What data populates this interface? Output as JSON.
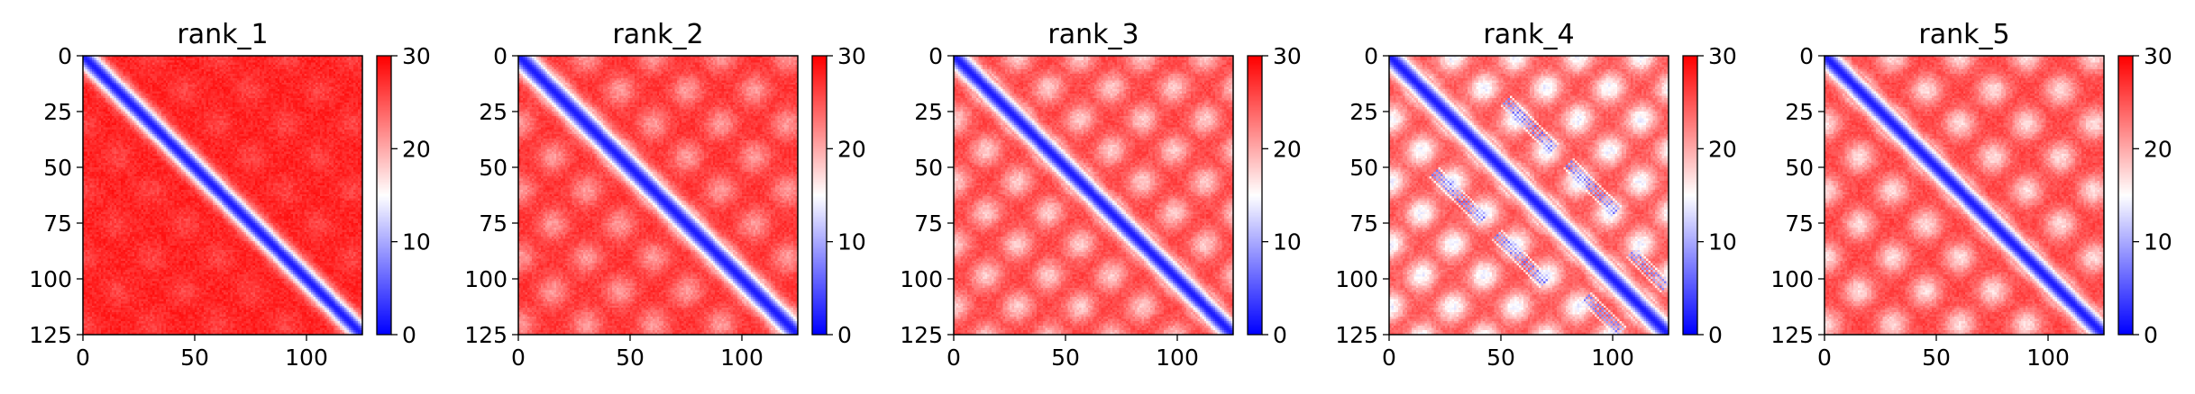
{
  "chart_data": [
    {
      "type": "heatmap",
      "title": "rank_1",
      "x_ticks": [
        0,
        50,
        100
      ],
      "y_ticks": [
        0,
        25,
        50,
        75,
        100,
        125
      ],
      "x_range": [
        0,
        125
      ],
      "y_range": [
        0,
        125
      ],
      "matrix_size": 125,
      "value_range": [
        0,
        30
      ],
      "colorbar_ticks": [
        0,
        10,
        20,
        30
      ],
      "colormap": [
        "#0000ff",
        "#ffffff",
        "#ff0000"
      ],
      "pattern": {
        "diagonal_width": 4.5,
        "off_diagonal_level": 28,
        "stripe_amplitude": 2,
        "stripe_period": 30,
        "stripe_width": 6,
        "islands": []
      }
    },
    {
      "type": "heatmap",
      "title": "rank_2",
      "x_ticks": [
        0,
        50,
        100
      ],
      "y_ticks": [
        0,
        25,
        50,
        75,
        100,
        125
      ],
      "x_range": [
        0,
        125
      ],
      "y_range": [
        0,
        125
      ],
      "matrix_size": 125,
      "value_range": [
        0,
        30
      ],
      "colorbar_ticks": [
        0,
        10,
        20,
        30
      ],
      "colormap": [
        "#0000ff",
        "#ffffff",
        "#ff0000"
      ],
      "pattern": {
        "diagonal_width": 5,
        "off_diagonal_level": 27,
        "stripe_amplitude": 6,
        "stripe_period": 30,
        "stripe_width": 7,
        "islands": []
      }
    },
    {
      "type": "heatmap",
      "title": "rank_3",
      "x_ticks": [
        0,
        50,
        100
      ],
      "y_ticks": [
        0,
        25,
        50,
        75,
        100,
        125
      ],
      "x_range": [
        0,
        125
      ],
      "y_range": [
        0,
        125
      ],
      "matrix_size": 125,
      "value_range": [
        0,
        30
      ],
      "colorbar_ticks": [
        0,
        10,
        20,
        30
      ],
      "colormap": [
        "#0000ff",
        "#ffffff",
        "#ff0000"
      ],
      "pattern": {
        "diagonal_width": 4.5,
        "off_diagonal_level": 26,
        "stripe_amplitude": 8,
        "stripe_period": 28,
        "stripe_width": 7,
        "islands": []
      }
    },
    {
      "type": "heatmap",
      "title": "rank_4",
      "x_ticks": [
        0,
        50,
        100
      ],
      "y_ticks": [
        0,
        25,
        50,
        75,
        100,
        125
      ],
      "x_range": [
        0,
        125
      ],
      "y_range": [
        0,
        125
      ],
      "matrix_size": 125,
      "value_range": [
        0,
        30
      ],
      "colorbar_ticks": [
        0,
        10,
        20,
        30
      ],
      "colormap": [
        "#0000ff",
        "#ffffff",
        "#ff0000"
      ],
      "pattern": {
        "diagonal_width": 4.5,
        "off_diagonal_level": 25,
        "stripe_amplitude": 11,
        "stripe_period": 28,
        "stripe_width": 7,
        "islands": [
          {
            "row": 20,
            "col": 52,
            "len": 22,
            "level": 9
          },
          {
            "row": 52,
            "col": 20,
            "len": 22,
            "level": 9
          },
          {
            "row": 48,
            "col": 80,
            "len": 22,
            "level": 9
          },
          {
            "row": 80,
            "col": 48,
            "len": 22,
            "level": 9
          },
          {
            "row": 88,
            "col": 108,
            "len": 16,
            "level": 10
          },
          {
            "row": 108,
            "col": 88,
            "len": 16,
            "level": 10
          }
        ]
      }
    },
    {
      "type": "heatmap",
      "title": "rank_5",
      "x_ticks": [
        0,
        50,
        100
      ],
      "y_ticks": [
        0,
        25,
        50,
        75,
        100,
        125
      ],
      "x_range": [
        0,
        125
      ],
      "y_range": [
        0,
        125
      ],
      "matrix_size": 125,
      "value_range": [
        0,
        30
      ],
      "colorbar_ticks": [
        0,
        10,
        20,
        30
      ],
      "colormap": [
        "#0000ff",
        "#ffffff",
        "#ff0000"
      ],
      "pattern": {
        "diagonal_width": 4.5,
        "off_diagonal_level": 26,
        "stripe_amplitude": 9,
        "stripe_period": 30,
        "stripe_width": 7,
        "islands": []
      }
    }
  ]
}
